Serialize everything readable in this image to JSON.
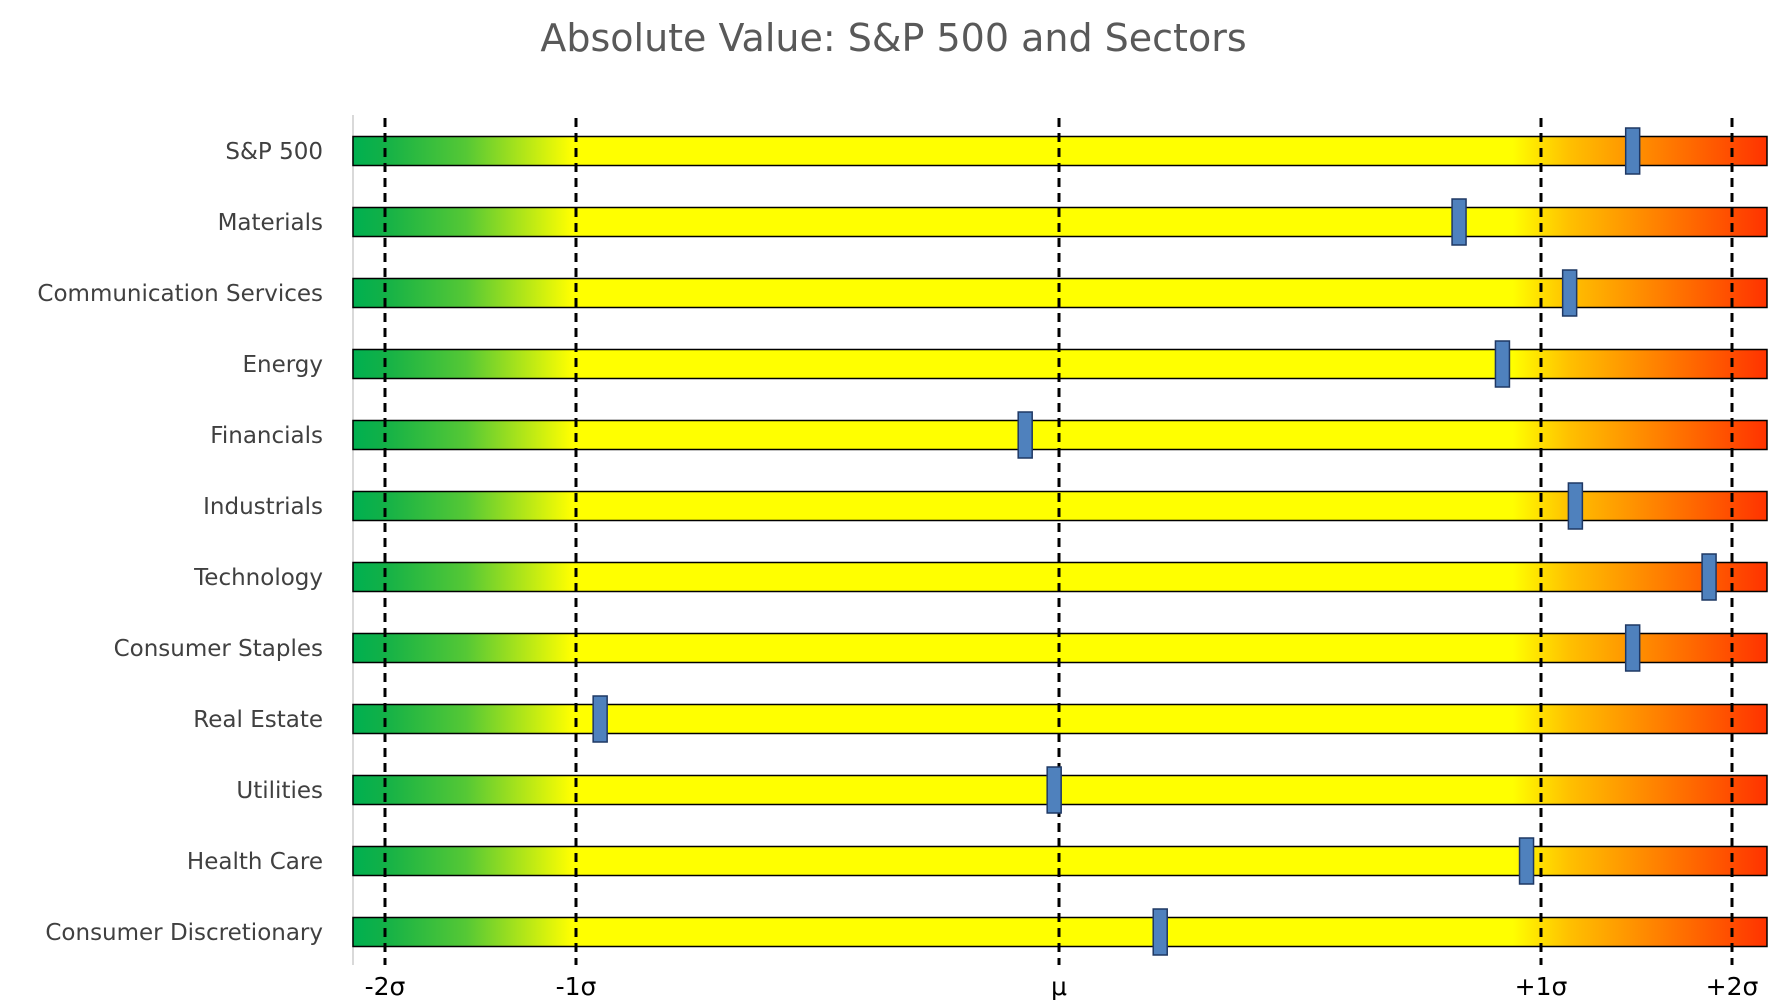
{
  "chart_data": {
    "type": "bar",
    "title": "Absolute Value: S&P 500 and Sectors",
    "categories": [
      "S&P 500",
      "Materials",
      "Communication Services",
      "Energy",
      "Financials",
      "Industrials",
      "Technology",
      "Consumer Staples",
      "Real Estate",
      "Utilities",
      "Health Care",
      "Consumer Discretionary"
    ],
    "values": [
      1.48,
      0.83,
      1.15,
      0.92,
      -0.07,
      1.18,
      1.88,
      1.48,
      -0.95,
      -0.01,
      0.97,
      0.21
    ],
    "x_ticks": [
      {
        "value": -2,
        "label": "-2σ"
      },
      {
        "value": -1,
        "label": "-1σ"
      },
      {
        "value": 0,
        "label": "μ"
      },
      {
        "value": 1,
        "label": "+1σ"
      },
      {
        "value": 2,
        "label": "+2σ"
      }
    ],
    "xlim": [
      -2.17,
      2.17
    ],
    "colors": {
      "green": "#00B050",
      "light_green": "#66CC33",
      "yellow": "#FFFF00",
      "orange": "#FFC000",
      "red": "#FF3300",
      "marker": "#4F81BD",
      "grid": "#000000"
    }
  }
}
